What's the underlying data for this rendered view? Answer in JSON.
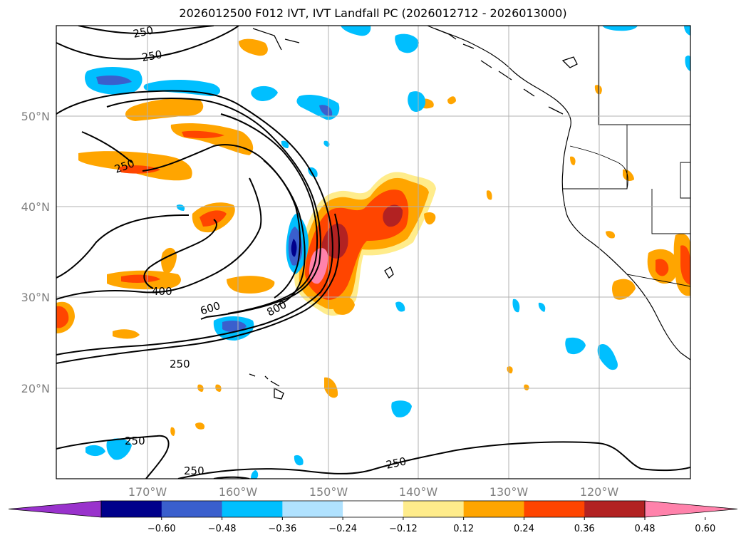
{
  "title": "2026012500 F012 IVT, IVT Landfall PC (2026012712 - 2026013000)",
  "axes": {
    "lat_labels": [
      "20°N",
      "30°N",
      "40°N",
      "50°N"
    ],
    "lon_labels": [
      "170°W",
      "160°W",
      "150°W",
      "140°W",
      "130°W",
      "120°W"
    ]
  },
  "colorbar": {
    "ticks": [
      "−0.60",
      "−0.48",
      "−0.36",
      "−0.24",
      "−0.12",
      "0.12",
      "0.24",
      "0.36",
      "0.48",
      "0.60"
    ],
    "colors": [
      "#9932cc",
      "#00008b",
      "#3a5fcd",
      "#00bfff",
      "#b0e2ff",
      "#ffffff",
      "#ffec8b",
      "#ffa500",
      "#ff4500",
      "#b22222",
      "#ff82ab"
    ]
  },
  "contour_labels": [
    "250",
    "250",
    "250",
    "400",
    "600",
    "800",
    "250",
    "250",
    "250",
    "250"
  ]
}
